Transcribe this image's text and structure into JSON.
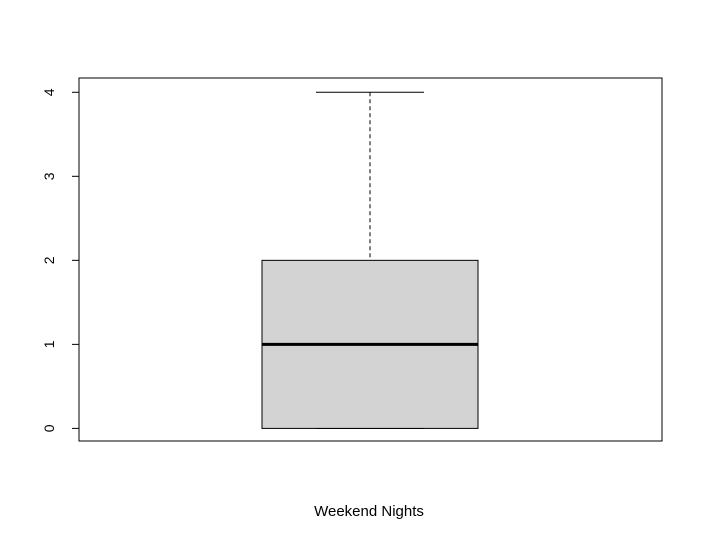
{
  "chart_data": {
    "type": "box",
    "xlabel": "Weekend Nights",
    "ylabel": "",
    "title": "",
    "ylim": [
      -0.15,
      4.17
    ],
    "yticks": [
      0,
      1,
      2,
      3,
      4
    ],
    "box": {
      "min": 0,
      "q1": 0,
      "median": 1,
      "q3": 2,
      "max": 4
    },
    "grid": false,
    "box_fill": "#d3d3d3",
    "line_color": "#000000"
  }
}
